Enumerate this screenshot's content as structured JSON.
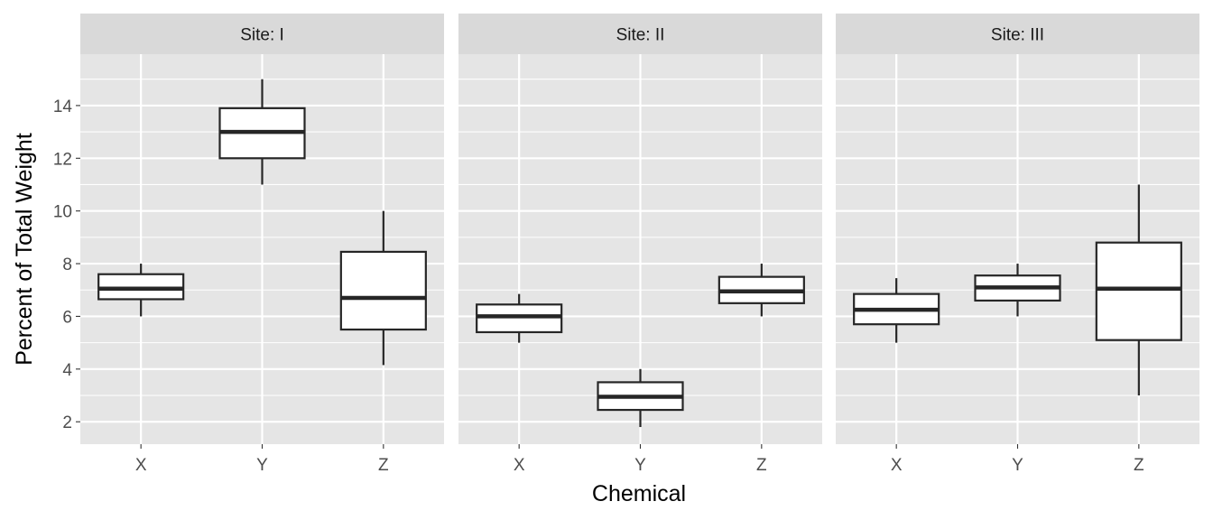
{
  "chart_data": {
    "type": "boxplot",
    "xlabel": "Chemical",
    "ylabel": "Percent of Total Weight",
    "categories": [
      "X",
      "Y",
      "Z"
    ],
    "ylim": [
      1.15,
      15.95
    ],
    "y_ticks": [
      2,
      4,
      6,
      8,
      10,
      12,
      14
    ],
    "y_tick_labels": [
      "2",
      "4",
      "6",
      "8",
      "10",
      "12",
      "14"
    ],
    "grid": true,
    "facets": [
      {
        "label": "Site: I",
        "boxes": [
          {
            "category": "X",
            "min": 6.0,
            "q1": 6.65,
            "median": 7.05,
            "q3": 7.6,
            "max": 8.0
          },
          {
            "category": "Y",
            "min": 11.0,
            "q1": 12.0,
            "median": 13.0,
            "q3": 13.9,
            "max": 15.0
          },
          {
            "category": "Z",
            "min": 4.15,
            "q1": 5.5,
            "median": 6.7,
            "q3": 8.45,
            "max": 10.0
          }
        ]
      },
      {
        "label": "Site: II",
        "boxes": [
          {
            "category": "X",
            "min": 5.0,
            "q1": 5.4,
            "median": 6.0,
            "q3": 6.45,
            "max": 6.85
          },
          {
            "category": "Y",
            "min": 1.8,
            "q1": 2.45,
            "median": 2.95,
            "q3": 3.5,
            "max": 4.0
          },
          {
            "category": "Z",
            "min": 6.0,
            "q1": 6.5,
            "median": 6.95,
            "q3": 7.5,
            "max": 8.0
          }
        ]
      },
      {
        "label": "Site: III",
        "boxes": [
          {
            "category": "X",
            "min": 5.0,
            "q1": 5.7,
            "median": 6.25,
            "q3": 6.85,
            "max": 7.45
          },
          {
            "category": "Y",
            "min": 6.0,
            "q1": 6.6,
            "median": 7.1,
            "q3": 7.55,
            "max": 8.0
          },
          {
            "category": "Z",
            "min": 3.0,
            "q1": 5.1,
            "median": 7.05,
            "q3": 8.8,
            "max": 11.0
          }
        ]
      }
    ],
    "colors": {
      "panel_background": "#e5e5e5",
      "strip_background": "#d9d9d9",
      "grid": "#ffffff",
      "box_fill": "#ffffff",
      "box_stroke": "#262626",
      "tick_text": "#4d4d4d",
      "axis_title": "#000000"
    }
  }
}
